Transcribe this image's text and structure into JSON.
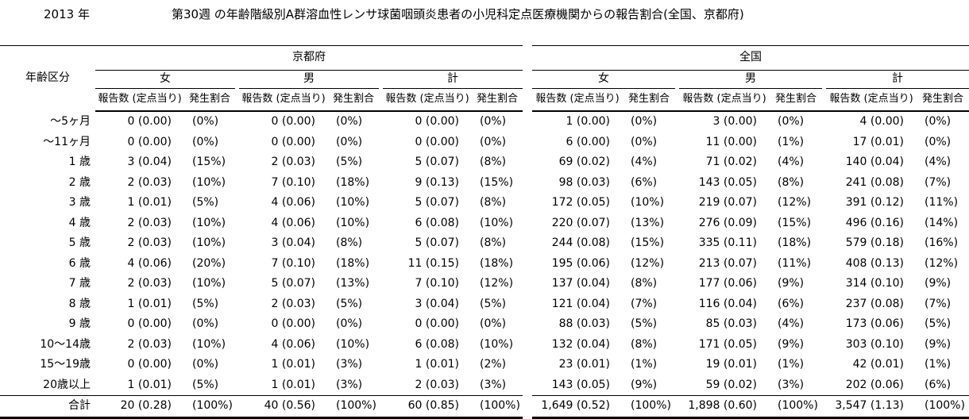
{
  "title": {
    "year": "2013 年",
    "main": "第30週 の年齢階級別A群溶血性レンサ球菌咽頭炎患者の小児科定点医療機関からの報告割合(全国、京都府)"
  },
  "table": {
    "age_column_header": "年齢区分",
    "sections": [
      {
        "label": "京都府"
      },
      {
        "label": "全国"
      }
    ],
    "gender_labels": [
      "女",
      "男",
      "計"
    ],
    "sub_headers": {
      "count": "報告数 (定点当り)",
      "rate": "発生割合"
    },
    "rows": [
      {
        "age": "～5ヶ月",
        "cells": [
          "0 (0.00)",
          "(0%)",
          "0 (0.00)",
          "(0%)",
          "0 (0.00)",
          "(0%)",
          "1 (0.00)",
          "(0%)",
          "3 (0.00)",
          "(0%)",
          "4 (0.00)",
          "(0%)"
        ]
      },
      {
        "age": "～11ヶ月",
        "cells": [
          "0 (0.00)",
          "(0%)",
          "0 (0.00)",
          "(0%)",
          "0 (0.00)",
          "(0%)",
          "6 (0.00)",
          "(0%)",
          "11 (0.00)",
          "(1%)",
          "17 (0.01)",
          "(0%)"
        ]
      },
      {
        "age": "1 歳",
        "cells": [
          "3 (0.04)",
          "(15%)",
          "2 (0.03)",
          "(5%)",
          "5 (0.07)",
          "(8%)",
          "69 (0.02)",
          "(4%)",
          "71 (0.02)",
          "(4%)",
          "140 (0.04)",
          "(4%)"
        ]
      },
      {
        "age": "2 歳",
        "cells": [
          "2 (0.03)",
          "(10%)",
          "7 (0.10)",
          "(18%)",
          "9 (0.13)",
          "(15%)",
          "98 (0.03)",
          "(6%)",
          "143 (0.05)",
          "(8%)",
          "241 (0.08)",
          "(7%)"
        ]
      },
      {
        "age": "3 歳",
        "cells": [
          "1 (0.01)",
          "(5%)",
          "4 (0.06)",
          "(10%)",
          "5 (0.07)",
          "(8%)",
          "172 (0.05)",
          "(10%)",
          "219 (0.07)",
          "(12%)",
          "391 (0.12)",
          "(11%)"
        ]
      },
      {
        "age": "4 歳",
        "cells": [
          "2 (0.03)",
          "(10%)",
          "4 (0.06)",
          "(10%)",
          "6 (0.08)",
          "(10%)",
          "220 (0.07)",
          "(13%)",
          "276 (0.09)",
          "(15%)",
          "496 (0.16)",
          "(14%)"
        ]
      },
      {
        "age": "5 歳",
        "cells": [
          "2 (0.03)",
          "(10%)",
          "3 (0.04)",
          "(8%)",
          "5 (0.07)",
          "(8%)",
          "244 (0.08)",
          "(15%)",
          "335 (0.11)",
          "(18%)",
          "579 (0.18)",
          "(16%)"
        ]
      },
      {
        "age": "6 歳",
        "cells": [
          "4 (0.06)",
          "(20%)",
          "7 (0.10)",
          "(18%)",
          "11 (0.15)",
          "(18%)",
          "195 (0.06)",
          "(12%)",
          "213 (0.07)",
          "(11%)",
          "408 (0.13)",
          "(12%)"
        ]
      },
      {
        "age": "7 歳",
        "cells": [
          "2 (0.03)",
          "(10%)",
          "5 (0.07)",
          "(13%)",
          "7 (0.10)",
          "(12%)",
          "137 (0.04)",
          "(8%)",
          "177 (0.06)",
          "(9%)",
          "314 (0.10)",
          "(9%)"
        ]
      },
      {
        "age": "8 歳",
        "cells": [
          "1 (0.01)",
          "(5%)",
          "2 (0.03)",
          "(5%)",
          "3 (0.04)",
          "(5%)",
          "121 (0.04)",
          "(7%)",
          "116 (0.04)",
          "(6%)",
          "237 (0.08)",
          "(7%)"
        ]
      },
      {
        "age": "9 歳",
        "cells": [
          "0 (0.00)",
          "(0%)",
          "0 (0.00)",
          "(0%)",
          "0 (0.00)",
          "(0%)",
          "88 (0.03)",
          "(5%)",
          "85 (0.03)",
          "(4%)",
          "173 (0.06)",
          "(5%)"
        ]
      },
      {
        "age": "10～14歳",
        "cells": [
          "2 (0.03)",
          "(10%)",
          "4 (0.06)",
          "(10%)",
          "6 (0.08)",
          "(10%)",
          "132 (0.04)",
          "(8%)",
          "171 (0.05)",
          "(9%)",
          "303 (0.10)",
          "(9%)"
        ]
      },
      {
        "age": "15～19歳",
        "cells": [
          "0 (0.00)",
          "(0%)",
          "1 (0.01)",
          "(3%)",
          "1 (0.01)",
          "(2%)",
          "23 (0.01)",
          "(1%)",
          "19 (0.01)",
          "(1%)",
          "42 (0.01)",
          "(1%)"
        ]
      },
      {
        "age": "20歳以上",
        "cells": [
          "1 (0.01)",
          "(5%)",
          "1 (0.01)",
          "(3%)",
          "2 (0.03)",
          "(3%)",
          "143 (0.05)",
          "(9%)",
          "59 (0.02)",
          "(3%)",
          "202 (0.06)",
          "(6%)"
        ]
      }
    ],
    "total_row": {
      "age": "合計",
      "cells": [
        "20 (0.28)",
        "(100%)",
        "40 (0.56)",
        "(100%)",
        "60 (0.85)",
        "(100%)",
        "1,649 (0.52)",
        "(100%)",
        "1,898 (0.60)",
        "(100%)",
        "3,547 (1.13)",
        "(100%)"
      ]
    }
  }
}
